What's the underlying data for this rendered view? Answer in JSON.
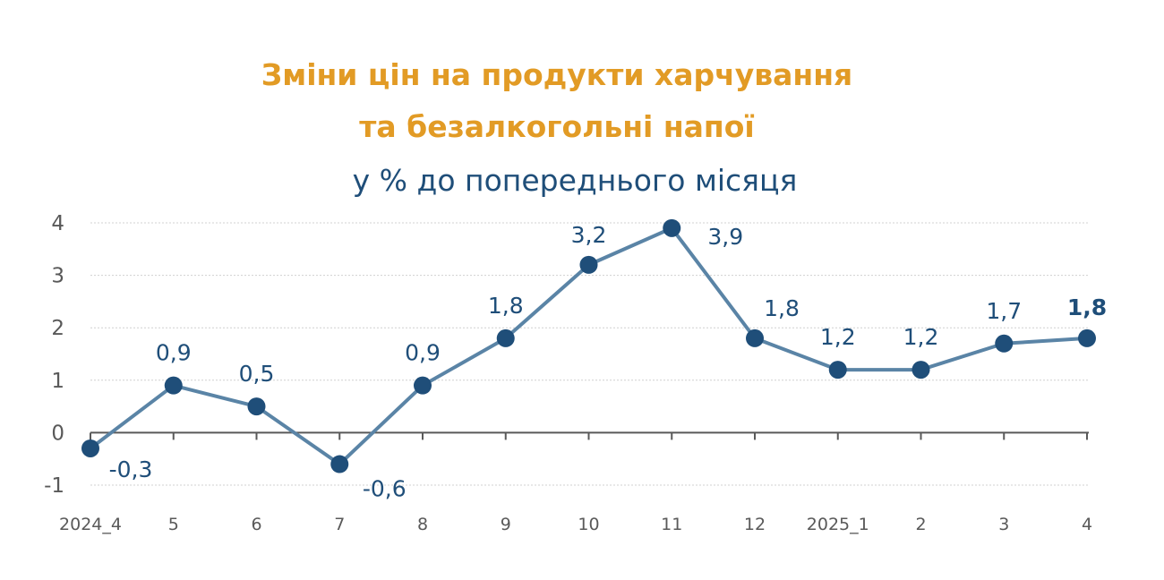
{
  "chart_data": {
    "type": "line",
    "title_line1": "Зміни цін на продукти харчування",
    "title_line2": "та безалкогольні напої",
    "subtitle": "у % до попереднього місяця",
    "xlabel": "",
    "ylabel": "",
    "categories": [
      "2024_4",
      "5",
      "6",
      "7",
      "8",
      "9",
      "10",
      "11",
      "12",
      "2025_1",
      "2",
      "3",
      "4"
    ],
    "values": [
      -0.3,
      0.9,
      0.5,
      -0.6,
      0.9,
      1.8,
      3.2,
      3.9,
      1.8,
      1.2,
      1.2,
      1.7,
      1.8
    ],
    "value_labels": [
      "-0,3",
      "0,9",
      "0,5",
      "-0,6",
      "0,9",
      "1,8",
      "3,2",
      "3,9",
      "1,8",
      "1,2",
      "1,2",
      "1,7",
      "1,8"
    ],
    "ylim": [
      -1,
      4
    ],
    "yticks": [
      -1,
      0,
      1,
      2,
      3,
      4
    ],
    "ytick_labels": [
      "-1",
      "0",
      "1",
      "2",
      "3",
      "4"
    ],
    "grid": true,
    "legend": "none",
    "colors": {
      "title": "#E29B25",
      "subtitle": "#1F4E79",
      "line": "#5A84A6",
      "marker": "#1F4E79",
      "label": "#1F4E79",
      "axis": "#595959",
      "grid": "#D0D0D0"
    }
  }
}
